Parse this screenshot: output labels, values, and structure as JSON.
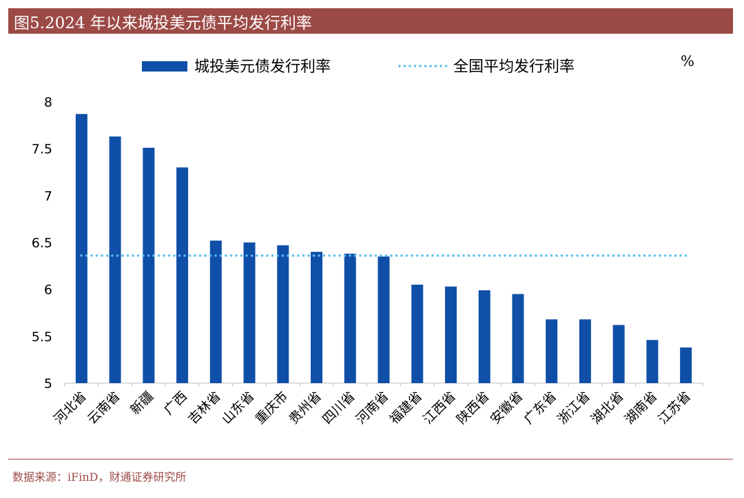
{
  "header": {
    "title": "图5.2024 年以来城投美元债平均发行利率"
  },
  "colors": {
    "header_bg": "#9c4a46",
    "bar": "#0f4fa8",
    "avg_line": "#5bbcf0",
    "axis": "#bfbfbf",
    "text": "#000000"
  },
  "chart_data": {
    "type": "bar",
    "unit": "%",
    "categories": [
      "河北省",
      "云南省",
      "新疆",
      "广西",
      "吉林省",
      "山东省",
      "重庆市",
      "贵州省",
      "四川省",
      "河南省",
      "福建省",
      "江西省",
      "陕西省",
      "安徽省",
      "广东省",
      "浙江省",
      "湖北省",
      "湖南省",
      "江苏省"
    ],
    "series": [
      {
        "name": "城投美元债发行利率",
        "style": "bar",
        "values": [
          7.87,
          7.63,
          7.51,
          7.3,
          6.52,
          6.5,
          6.47,
          6.4,
          6.38,
          6.35,
          6.05,
          6.03,
          5.99,
          5.95,
          5.68,
          5.68,
          5.62,
          5.46,
          5.38
        ]
      },
      {
        "name": "全国平均发行利率",
        "style": "dotted-line",
        "value": 6.36
      }
    ],
    "y_ticks": [
      "8",
      "7.5",
      "7",
      "6.5",
      "6",
      "5.5",
      "5"
    ],
    "ylim": [
      5,
      8
    ],
    "legend_position": "top",
    "grid": false
  },
  "footer": {
    "source": "数据来源：iFinD，财通证券研究所"
  }
}
